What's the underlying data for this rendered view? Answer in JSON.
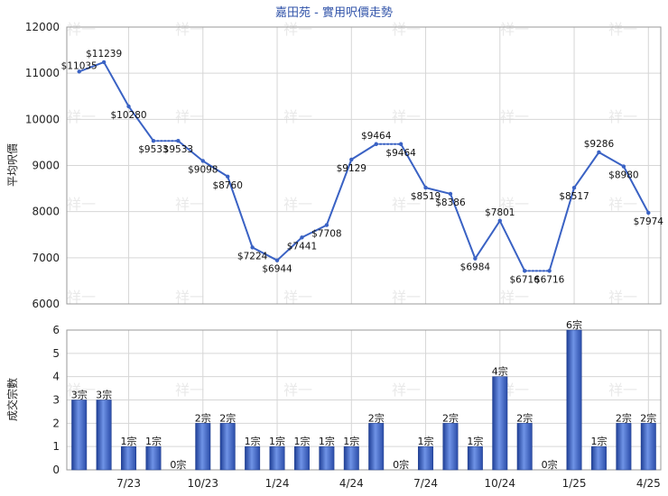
{
  "chart_data": [
    {
      "type": "line",
      "title": "嘉田苑 - 實用呎價走勢",
      "ylabel": "平均呎價",
      "ylim": [
        6000,
        12000
      ],
      "yticks": [
        6000,
        7000,
        8000,
        9000,
        10000,
        11000,
        12000
      ],
      "x_tick_labels": [
        "7/23",
        "10/23",
        "1/24",
        "4/24",
        "7/24",
        "10/24",
        "1/25",
        "4/25"
      ],
      "grid": true,
      "line_color": "#3a62c4",
      "points": [
        {
          "value": 11035,
          "label": "$11035"
        },
        {
          "value": 11239,
          "label": "$11239"
        },
        {
          "value": 10280,
          "label": "$10280"
        },
        {
          "value": 9533,
          "label": "$9533"
        },
        {
          "value": 9533,
          "label": "$9533",
          "carried": true
        },
        {
          "value": 9098,
          "label": "$9098"
        },
        {
          "value": 8760,
          "label": "$8760"
        },
        {
          "value": 7224,
          "label": "$7224"
        },
        {
          "value": 6944,
          "label": "$6944"
        },
        {
          "value": 7441,
          "label": "$7441"
        },
        {
          "value": 7708,
          "label": "$7708"
        },
        {
          "value": 9129,
          "label": "$9129"
        },
        {
          "value": 9464,
          "label": "$9464"
        },
        {
          "value": 9464,
          "label": "$9464",
          "carried": true
        },
        {
          "value": 8519,
          "label": "$8519"
        },
        {
          "value": 8386,
          "label": "$8386"
        },
        {
          "value": 6984,
          "label": "$6984"
        },
        {
          "value": 7801,
          "label": "$7801"
        },
        {
          "value": 6716,
          "label": "$6716"
        },
        {
          "value": 6716,
          "label": "$6716",
          "carried": true
        },
        {
          "value": 8517,
          "label": "$8517"
        },
        {
          "value": 9286,
          "label": "$9286"
        },
        {
          "value": 8980,
          "label": "$8980"
        },
        {
          "value": 7974,
          "label": "$7974"
        }
      ]
    },
    {
      "type": "bar",
      "ylabel": "成交宗數",
      "ylim": [
        0,
        6
      ],
      "yticks": [
        0,
        1,
        2,
        3,
        4,
        5,
        6
      ],
      "x_tick_labels": [
        "7/23",
        "10/23",
        "1/24",
        "4/24",
        "7/24",
        "10/24",
        "1/25",
        "4/25"
      ],
      "bar_color": "#3a62c4",
      "bars": [
        {
          "value": 3,
          "label": "3宗"
        },
        {
          "value": 3,
          "label": "3宗"
        },
        {
          "value": 1,
          "label": "1宗"
        },
        {
          "value": 1,
          "label": "1宗"
        },
        {
          "value": 0,
          "label": "0宗"
        },
        {
          "value": 2,
          "label": "2宗"
        },
        {
          "value": 2,
          "label": "2宗"
        },
        {
          "value": 1,
          "label": "1宗"
        },
        {
          "value": 1,
          "label": "1宗"
        },
        {
          "value": 1,
          "label": "1宗"
        },
        {
          "value": 1,
          "label": "1宗"
        },
        {
          "value": 1,
          "label": "1宗"
        },
        {
          "value": 2,
          "label": "2宗"
        },
        {
          "value": 0,
          "label": "0宗"
        },
        {
          "value": 1,
          "label": "1宗"
        },
        {
          "value": 2,
          "label": "2宗"
        },
        {
          "value": 1,
          "label": "1宗"
        },
        {
          "value": 4,
          "label": "4宗"
        },
        {
          "value": 2,
          "label": "2宗"
        },
        {
          "value": 0,
          "label": "0宗"
        },
        {
          "value": 6,
          "label": "6宗"
        },
        {
          "value": 1,
          "label": "1宗"
        },
        {
          "value": 2,
          "label": "2宗"
        },
        {
          "value": 2,
          "label": "2宗"
        }
      ]
    }
  ],
  "watermark": "祥一"
}
